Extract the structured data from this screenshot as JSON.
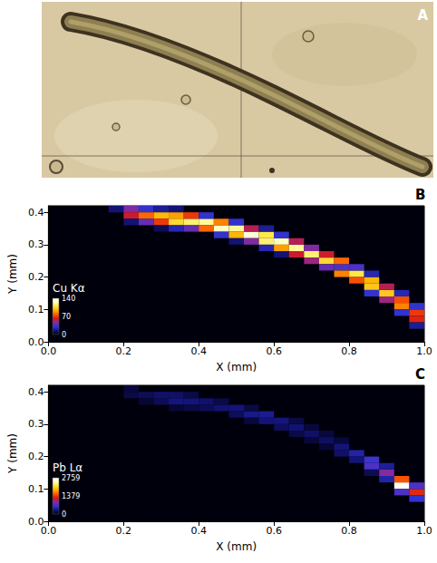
{
  "chart_data": [
    {
      "type": "image",
      "panel": "A"
    },
    {
      "type": "heatmap",
      "panel": "B",
      "colorbar_label": "Cu Kα",
      "x_label": "X (mm)",
      "y_label": "Y (mm)",
      "xlim": [
        0,
        1
      ],
      "xticks": [
        {
          "value": 0,
          "label": "0.0"
        },
        0.2,
        0.4,
        0.6,
        0.8,
        {
          "value": 1,
          "label": "1.0"
        }
      ],
      "ylim": [
        0,
        0.42
      ],
      "yticks": [
        {
          "value": 0,
          "label": "0.0"
        },
        0.1,
        0.2,
        0.3,
        0.4
      ],
      "colorbar_range": [
        0,
        140
      ],
      "colorbar_ticks": [
        0,
        70,
        140
      ],
      "cell_size": [
        0.04,
        0.02
      ],
      "cells": [
        [
          0.18,
          0.41,
          15
        ],
        [
          0.22,
          0.39,
          60
        ],
        [
          0.22,
          0.41,
          45
        ],
        [
          0.22,
          0.37,
          15
        ],
        [
          0.26,
          0.39,
          80
        ],
        [
          0.26,
          0.37,
          40
        ],
        [
          0.26,
          0.41,
          30
        ],
        [
          0.3,
          0.39,
          95
        ],
        [
          0.3,
          0.37,
          70
        ],
        [
          0.3,
          0.41,
          20
        ],
        [
          0.3,
          0.35,
          10
        ],
        [
          0.34,
          0.39,
          90
        ],
        [
          0.34,
          0.37,
          105
        ],
        [
          0.34,
          0.35,
          25
        ],
        [
          0.34,
          0.41,
          15
        ],
        [
          0.38,
          0.37,
          115
        ],
        [
          0.38,
          0.39,
          70
        ],
        [
          0.38,
          0.35,
          40
        ],
        [
          0.42,
          0.37,
          120
        ],
        [
          0.42,
          0.35,
          80
        ],
        [
          0.42,
          0.39,
          30
        ],
        [
          0.46,
          0.35,
          125
        ],
        [
          0.46,
          0.37,
          85
        ],
        [
          0.46,
          0.33,
          30
        ],
        [
          0.5,
          0.35,
          120
        ],
        [
          0.5,
          0.33,
          95
        ],
        [
          0.5,
          0.37,
          30
        ],
        [
          0.5,
          0.31,
          15
        ],
        [
          0.54,
          0.33,
          130
        ],
        [
          0.54,
          0.35,
          55
        ],
        [
          0.54,
          0.31,
          45
        ],
        [
          0.58,
          0.33,
          110
        ],
        [
          0.58,
          0.31,
          115
        ],
        [
          0.58,
          0.29,
          25
        ],
        [
          0.58,
          0.35,
          20
        ],
        [
          0.62,
          0.31,
          125
        ],
        [
          0.62,
          0.29,
          90
        ],
        [
          0.62,
          0.33,
          30
        ],
        [
          0.62,
          0.27,
          15
        ],
        [
          0.66,
          0.29,
          120
        ],
        [
          0.66,
          0.27,
          60
        ],
        [
          0.66,
          0.31,
          55
        ],
        [
          0.7,
          0.27,
          115
        ],
        [
          0.7,
          0.29,
          45
        ],
        [
          0.7,
          0.25,
          50
        ],
        [
          0.74,
          0.25,
          105
        ],
        [
          0.74,
          0.27,
          60
        ],
        [
          0.74,
          0.23,
          40
        ],
        [
          0.78,
          0.23,
          35
        ],
        [
          0.78,
          0.21,
          85
        ],
        [
          0.78,
          0.25,
          80
        ],
        [
          0.82,
          0.21,
          110
        ],
        [
          0.82,
          0.19,
          75
        ],
        [
          0.82,
          0.23,
          35
        ],
        [
          0.86,
          0.17,
          100
        ],
        [
          0.86,
          0.19,
          95
        ],
        [
          0.86,
          0.15,
          30
        ],
        [
          0.86,
          0.21,
          25
        ],
        [
          0.9,
          0.15,
          100
        ],
        [
          0.9,
          0.13,
          50
        ],
        [
          0.9,
          0.17,
          55
        ],
        [
          0.94,
          0.11,
          85
        ],
        [
          0.94,
          0.13,
          75
        ],
        [
          0.94,
          0.09,
          30
        ],
        [
          0.94,
          0.15,
          25
        ],
        [
          0.98,
          0.09,
          70
        ],
        [
          0.98,
          0.07,
          65
        ],
        [
          0.98,
          0.11,
          30
        ],
        [
          0.98,
          0.05,
          20
        ]
      ]
    },
    {
      "type": "heatmap",
      "panel": "C",
      "colorbar_label": "Pb Lα",
      "x_label": "X (mm)",
      "y_label": "Y (mm)",
      "xlim": [
        0,
        1
      ],
      "xticks": [
        {
          "value": 0,
          "label": "0.0"
        },
        0.2,
        0.4,
        0.6,
        0.8,
        {
          "value": 1,
          "label": "1.0"
        }
      ],
      "ylim": [
        0,
        0.42
      ],
      "yticks": [
        {
          "value": 0,
          "label": "0.0"
        },
        0.1,
        0.2,
        0.3,
        0.4
      ],
      "colorbar_range": [
        0,
        2759
      ],
      "colorbar_ticks": [
        0,
        1379,
        2759
      ],
      "cell_size": [
        0.04,
        0.02
      ],
      "cells": [
        [
          0.22,
          0.39,
          150
        ],
        [
          0.22,
          0.41,
          120
        ],
        [
          0.26,
          0.39,
          200
        ],
        [
          0.26,
          0.37,
          100
        ],
        [
          0.3,
          0.39,
          260
        ],
        [
          0.3,
          0.37,
          200
        ],
        [
          0.34,
          0.37,
          320
        ],
        [
          0.34,
          0.39,
          250
        ],
        [
          0.34,
          0.35,
          100
        ],
        [
          0.38,
          0.37,
          300
        ],
        [
          0.38,
          0.35,
          150
        ],
        [
          0.38,
          0.39,
          150
        ],
        [
          0.42,
          0.37,
          260
        ],
        [
          0.42,
          0.35,
          200
        ],
        [
          0.46,
          0.35,
          280
        ],
        [
          0.46,
          0.37,
          150
        ],
        [
          0.5,
          0.35,
          300
        ],
        [
          0.5,
          0.33,
          220
        ],
        [
          0.54,
          0.33,
          350
        ],
        [
          0.54,
          0.35,
          150
        ],
        [
          0.54,
          0.31,
          120
        ],
        [
          0.58,
          0.33,
          380
        ],
        [
          0.58,
          0.31,
          300
        ],
        [
          0.62,
          0.31,
          320
        ],
        [
          0.62,
          0.29,
          220
        ],
        [
          0.66,
          0.29,
          280
        ],
        [
          0.66,
          0.31,
          150
        ],
        [
          0.66,
          0.27,
          150
        ],
        [
          0.7,
          0.27,
          250
        ],
        [
          0.7,
          0.29,
          120
        ],
        [
          0.7,
          0.25,
          120
        ],
        [
          0.74,
          0.25,
          230
        ],
        [
          0.74,
          0.27,
          120
        ],
        [
          0.74,
          0.23,
          100
        ],
        [
          0.78,
          0.23,
          300
        ],
        [
          0.78,
          0.21,
          250
        ],
        [
          0.78,
          0.25,
          120
        ],
        [
          0.82,
          0.21,
          450
        ],
        [
          0.82,
          0.19,
          300
        ],
        [
          0.86,
          0.17,
          700
        ],
        [
          0.86,
          0.19,
          650
        ],
        [
          0.86,
          0.15,
          200
        ],
        [
          0.9,
          0.15,
          900
        ],
        [
          0.9,
          0.13,
          450
        ],
        [
          0.9,
          0.17,
          400
        ],
        [
          0.94,
          0.11,
          2700
        ],
        [
          0.94,
          0.13,
          1500
        ],
        [
          0.94,
          0.09,
          700
        ],
        [
          0.98,
          0.09,
          1300
        ],
        [
          0.98,
          0.07,
          600
        ],
        [
          0.98,
          0.11,
          700
        ]
      ]
    }
  ]
}
